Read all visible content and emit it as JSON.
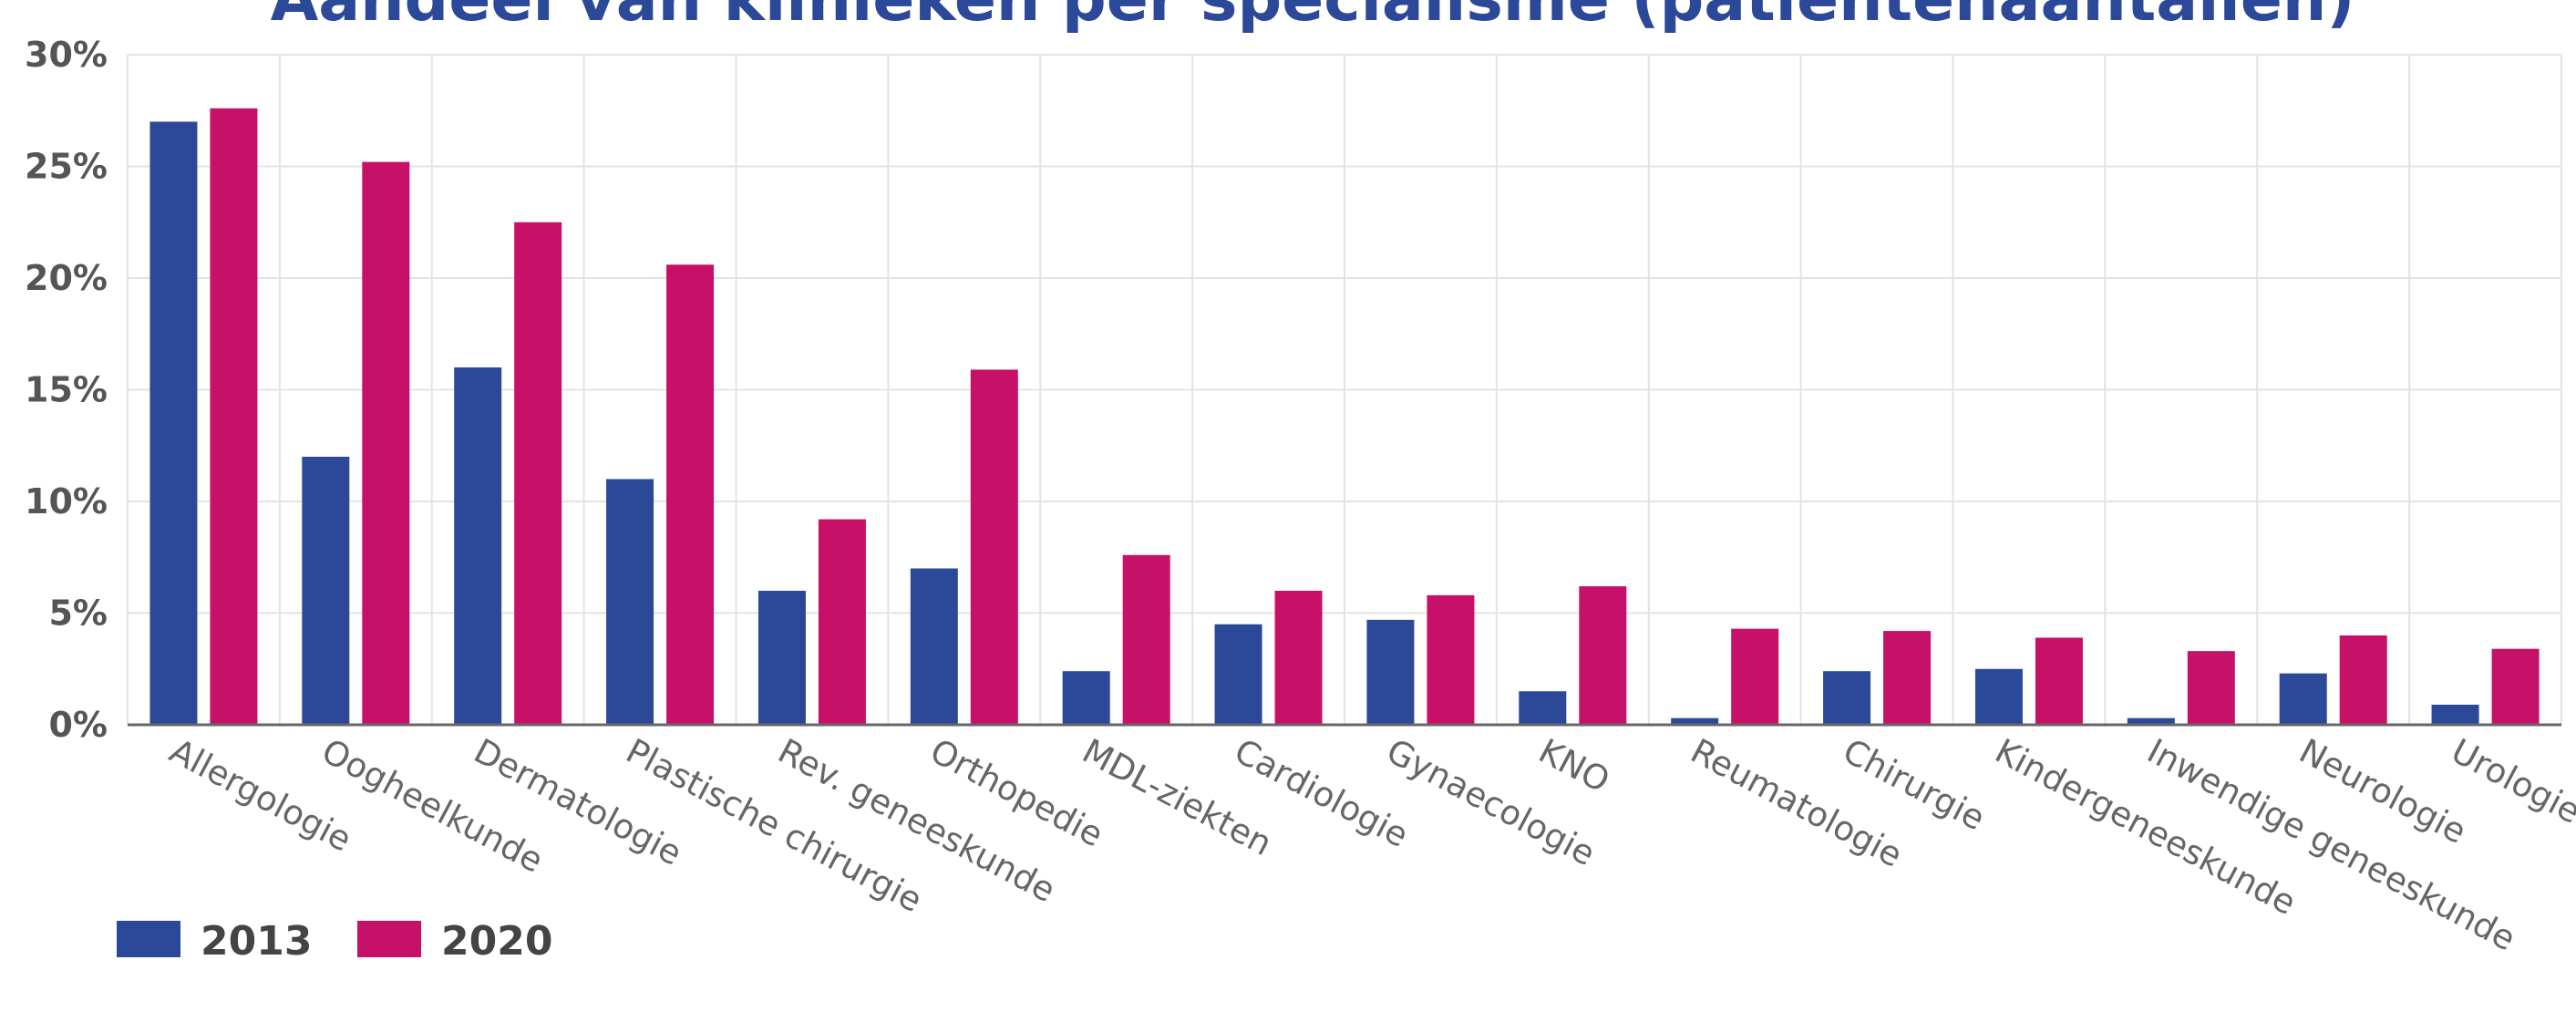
{
  "colors": {
    "series_2013": "#2b4899",
    "series_2020": "#c71068",
    "title": "#2b4899",
    "grid": "#e3e3e3",
    "axis": "#666666"
  },
  "chart_data": {
    "type": "bar",
    "title": "Aandeel van klinieken per specialisme (patiëntenaantallen)",
    "xlabel": "",
    "ylabel": "",
    "ylim": [
      0,
      30
    ],
    "yticks": [
      "0%",
      "5%",
      "10%",
      "15%",
      "20%",
      "25%",
      "30%"
    ],
    "grid": true,
    "legend": "bottom-left",
    "categories": [
      "Allergologie",
      "Oogheelkunde",
      "Dermatologie",
      "Plastische chirurgie",
      "Rev. geneeskunde",
      "Orthopedie",
      "MDL-ziekten",
      "Cardiologie",
      "Gynaecologie",
      "KNO",
      "Reumatologie",
      "Chirurgie",
      "Kindergeneeskunde",
      "Inwendige geneeskunde",
      "Neurologie",
      "Urologie"
    ],
    "series": [
      {
        "name": "2013",
        "values": [
          27.0,
          12.0,
          16.0,
          11.0,
          6.0,
          7.0,
          2.4,
          4.5,
          4.7,
          1.5,
          0.3,
          2.4,
          2.5,
          0.3,
          2.3,
          0.9
        ]
      },
      {
        "name": "2020",
        "values": [
          27.6,
          25.2,
          22.5,
          20.6,
          9.2,
          15.9,
          7.6,
          6.0,
          5.8,
          6.2,
          4.3,
          4.2,
          3.9,
          3.3,
          4.0,
          3.4
        ]
      }
    ]
  }
}
